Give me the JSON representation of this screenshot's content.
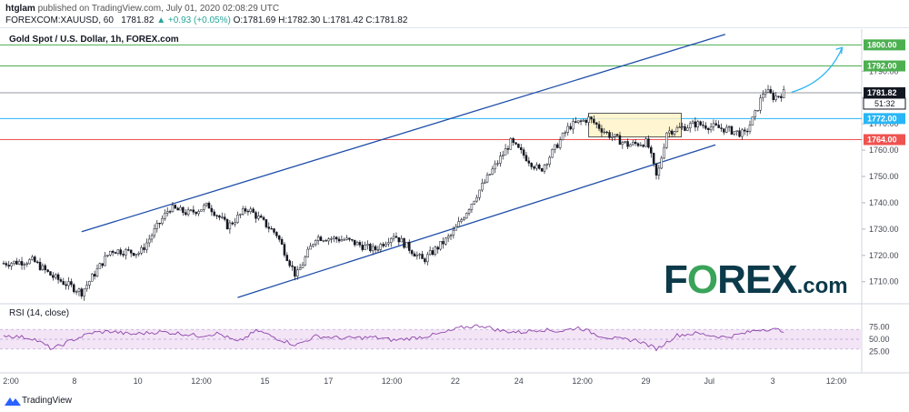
{
  "header": {
    "publisher": "htglam",
    "published_text": "published on TradingView.com, July 01, 2020 02:08:29 UTC",
    "symbol": "FOREXCOM:XAUUSD, 60",
    "last": "1781.82",
    "change": "+0.93 (+0.05%)",
    "ohlc": "O:1781.69 H:1782.30 L:1781.42 C:1781.82"
  },
  "chart_title": "Gold Spot / U.S. Dollar, 1h, FOREX.com",
  "rsi_label": "RSI (14, close)",
  "brand": {
    "tradingview": "TradingView",
    "logo_a": "F",
    "logo_b": "REX",
    "logo_c": ".com",
    "logo_o": "O"
  },
  "colors": {
    "up": "#26a69a",
    "channel": "#1e4ea8",
    "green_level": "#4caf50",
    "blue_level": "#29b6f6",
    "red_level": "#ef5350",
    "rsi": "#8e44ad",
    "rsi_band": "#f3e5f5",
    "box": "#fff3c4"
  },
  "chart_data": {
    "type": "candlestick",
    "x_ticks": [
      "2:00",
      "8",
      "10",
      "12:00",
      "15",
      "17",
      "12:00",
      "22",
      "24",
      "12:00",
      "29",
      "Jul",
      "3",
      "12:00"
    ],
    "y_ticks": [
      1710,
      1720,
      1730,
      1740,
      1750,
      1760,
      1770,
      1780,
      1790
    ],
    "ylim": [
      1703,
      1806
    ],
    "levels": [
      {
        "label": "1800.00",
        "value": 1800.0,
        "color": "green"
      },
      {
        "label": "1792.00",
        "value": 1792.0,
        "color": "green"
      },
      {
        "label": "1781.82",
        "value": 1781.82,
        "color": "last"
      },
      {
        "label": "1772.00",
        "value": 1772.0,
        "color": "blue"
      },
      {
        "label": "1764.00",
        "value": 1764.0,
        "color": "red"
      }
    ],
    "countdown": "51:32",
    "anchors": [
      [
        0,
        1717
      ],
      [
        3,
        1718
      ],
      [
        5,
        1712
      ],
      [
        8,
        1706
      ],
      [
        11,
        1722
      ],
      [
        14,
        1721
      ],
      [
        17,
        1738
      ],
      [
        19,
        1736
      ],
      [
        21,
        1739
      ],
      [
        23,
        1731
      ],
      [
        25,
        1738
      ],
      [
        28,
        1728
      ],
      [
        30,
        1712
      ],
      [
        32,
        1727
      ],
      [
        35,
        1726
      ],
      [
        38,
        1722
      ],
      [
        40,
        1728
      ],
      [
        43,
        1718
      ],
      [
        46,
        1728
      ],
      [
        49,
        1746
      ],
      [
        52,
        1763
      ],
      [
        55,
        1752
      ],
      [
        58,
        1769
      ],
      [
        60,
        1772
      ],
      [
        62,
        1766
      ],
      [
        64,
        1762
      ],
      [
        66,
        1763
      ],
      [
        67,
        1749
      ],
      [
        68,
        1767
      ],
      [
        71,
        1770
      ],
      [
        74,
        1768
      ],
      [
        76,
        1766
      ],
      [
        77,
        1773
      ],
      [
        78,
        1783
      ],
      [
        79,
        1780
      ],
      [
        80,
        1781.82
      ]
    ],
    "rsi": {
      "ticks": [
        25,
        50,
        75
      ],
      "band": [
        30,
        70
      ],
      "anchors": [
        [
          0,
          58
        ],
        [
          3,
          52
        ],
        [
          5,
          30
        ],
        [
          7,
          48
        ],
        [
          9,
          63
        ],
        [
          11,
          66
        ],
        [
          13,
          60
        ],
        [
          16,
          65
        ],
        [
          18,
          62
        ],
        [
          20,
          57
        ],
        [
          22,
          62
        ],
        [
          24,
          44
        ],
        [
          26,
          68
        ],
        [
          28,
          52
        ],
        [
          30,
          38
        ],
        [
          32,
          56
        ],
        [
          35,
          52
        ],
        [
          38,
          54
        ],
        [
          40,
          48
        ],
        [
          43,
          55
        ],
        [
          45,
          62
        ],
        [
          47,
          74
        ],
        [
          49,
          78
        ],
        [
          51,
          67
        ],
        [
          53,
          64
        ],
        [
          55,
          70
        ],
        [
          57,
          66
        ],
        [
          59,
          74
        ],
        [
          61,
          58
        ],
        [
          63,
          50
        ],
        [
          65,
          48
        ],
        [
          67,
          30
        ],
        [
          69,
          58
        ],
        [
          71,
          62
        ],
        [
          74,
          54
        ],
        [
          76,
          62
        ],
        [
          77,
          68
        ],
        [
          78,
          71
        ],
        [
          80,
          68
        ]
      ]
    }
  }
}
